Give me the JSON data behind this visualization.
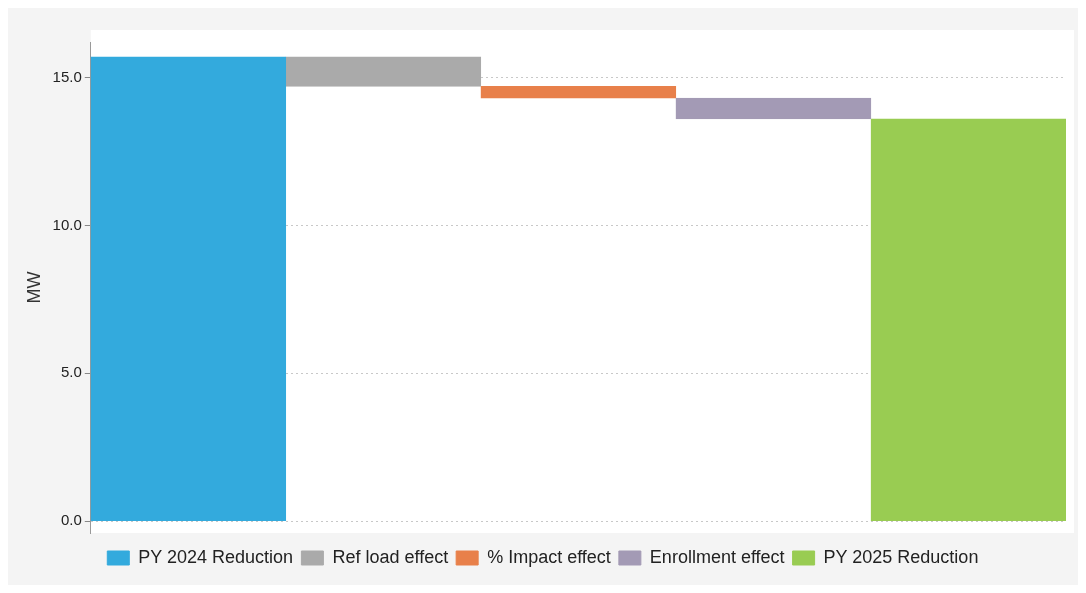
{
  "chart_data": {
    "type": "bar",
    "ylabel": "MW",
    "categories": [
      null,
      null,
      null,
      null,
      null
    ],
    "series": [
      {
        "name": "PY 2024 Reduction",
        "color": "#33aadd",
        "values": [
          15.7,
          null,
          null,
          null,
          null
        ],
        "base": [
          0,
          null,
          null,
          null,
          null
        ]
      },
      {
        "name": "Ref load effect",
        "color": "#aaaaaa",
        "values": [
          null,
          -1.0,
          null,
          null,
          null
        ],
        "base": [
          null,
          15.7,
          null,
          null,
          null
        ]
      },
      {
        "name": "% Impact effect",
        "color": "#e8804a",
        "values": [
          null,
          null,
          -0.4,
          null,
          null
        ],
        "base": [
          null,
          null,
          14.7,
          null,
          null
        ]
      },
      {
        "name": "Enrollment effect",
        "color": "#a39ab5",
        "values": [
          null,
          null,
          null,
          -0.7,
          null
        ],
        "base": [
          null,
          null,
          null,
          14.3,
          null
        ]
      },
      {
        "name": "PY 2025 Reduction",
        "color": "#99cc52",
        "values": [
          null,
          null,
          null,
          null,
          13.6
        ],
        "base": [
          null,
          null,
          null,
          null,
          0
        ]
      }
    ],
    "ylim": [
      -0.4,
      16.2
    ],
    "yticks": [
      {
        "value": 0,
        "label": "0.0"
      },
      {
        "value": 5,
        "label": "5.0"
      },
      {
        "value": 10,
        "label": "10.0"
      },
      {
        "value": 15,
        "label": "15.0"
      }
    ],
    "grid": "y",
    "legend": "bottom"
  }
}
